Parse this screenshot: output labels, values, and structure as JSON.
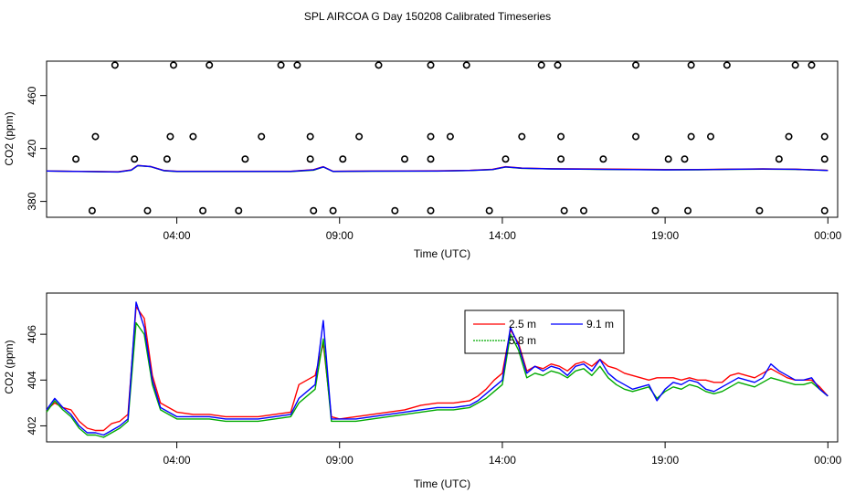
{
  "title": "SPL AIRCOA G  Day 150208  Calibrated Timeseries",
  "chart_data": [
    {
      "type": "scatter+line",
      "xlabel": "Time (UTC)",
      "ylabel": "CO2 (ppm)",
      "x_unit": "hours UTC",
      "xlim": [
        0.0,
        24.3
      ],
      "ylim": [
        368,
        486
      ],
      "xticks": [
        {
          "v": 4,
          "label": "04:00"
        },
        {
          "v": 9,
          "label": "09:00"
        },
        {
          "v": 14,
          "label": "14:00"
        },
        {
          "v": 19,
          "label": "19:00"
        },
        {
          "v": 24,
          "label": "00:00"
        }
      ],
      "yticks": [
        {
          "v": 380,
          "label": "380"
        },
        {
          "v": 420,
          "label": "420"
        },
        {
          "v": 460,
          "label": "460"
        }
      ],
      "point_series": {
        "name": "",
        "x": [
          1.4,
          3.1,
          4.8,
          5.9,
          8.2,
          8.8,
          10.7,
          11.8,
          13.6,
          15.9,
          16.5,
          18.7,
          19.7,
          21.9,
          23.9,
          0.9,
          2.7,
          3.7,
          6.1,
          8.1,
          9.1,
          11.0,
          11.8,
          14.1,
          15.8,
          17.1,
          19.1,
          19.6,
          22.5,
          23.9,
          1.5,
          3.8,
          4.5,
          6.6,
          8.1,
          9.6,
          11.8,
          12.4,
          14.6,
          15.8,
          18.1,
          19.8,
          20.4,
          22.8,
          23.9,
          2.1,
          3.9,
          5.0,
          7.2,
          7.7,
          10.2,
          11.8,
          12.9,
          15.2,
          15.7,
          18.1,
          19.8,
          20.9,
          23.0,
          23.5
        ],
        "y": [
          373,
          373,
          373,
          373,
          373,
          373,
          373,
          373,
          373,
          373,
          373,
          373,
          373,
          373,
          373,
          412,
          412,
          412,
          412,
          412,
          412,
          412,
          412,
          412,
          412,
          412,
          412,
          412,
          412,
          412,
          429,
          429,
          429,
          429,
          429,
          429,
          429,
          429,
          429,
          429,
          429,
          429,
          429,
          429,
          429,
          483,
          483,
          483,
          483,
          483,
          483,
          483,
          483,
          483,
          483,
          483,
          483,
          483,
          483,
          483
        ]
      },
      "series": [
        {
          "name": "",
          "color": "#008000",
          "x": [
            0,
            2.2,
            2.6,
            2.8,
            3.2,
            3.6,
            4.0,
            6.0,
            7.5,
            8.2,
            8.5,
            8.8,
            10.0,
            12.0,
            13.0,
            13.7,
            14.1,
            14.6,
            15.5,
            17.0,
            19.0,
            20.0,
            21.0,
            22.0,
            23.0,
            24.0
          ],
          "y": [
            403,
            402.2,
            403.6,
            407,
            406.2,
            403.2,
            402.6,
            402.6,
            402.6,
            403.6,
            406,
            402.6,
            402.8,
            402.9,
            403.3,
            404,
            406,
            405,
            404.5,
            404.2,
            403.8,
            403.9,
            404.2,
            404.4,
            404.2,
            403.4
          ]
        },
        {
          "name": "",
          "color": "#ff0000",
          "x": [
            0,
            2.2,
            2.6,
            2.8,
            3.2,
            3.6,
            4.0,
            6.0,
            7.5,
            8.2,
            8.5,
            8.8,
            10.0,
            12.0,
            13.0,
            13.7,
            14.1,
            14.6,
            15.5,
            17.0,
            19.0,
            20.0,
            21.0,
            22.0,
            23.0,
            24.0
          ],
          "y": [
            403,
            402.4,
            403.8,
            407.2,
            406.4,
            403.4,
            402.8,
            402.8,
            402.8,
            404,
            406.2,
            402.8,
            403,
            403.1,
            403.5,
            404.3,
            406.2,
            405.2,
            404.7,
            404.5,
            404.1,
            404.1,
            404.4,
            404.6,
            404.4,
            403.5
          ]
        },
        {
          "name": "",
          "color": "#0000ff",
          "x": [
            0,
            2.2,
            2.6,
            2.8,
            3.2,
            3.6,
            4.0,
            6.0,
            7.5,
            8.2,
            8.5,
            8.8,
            10.0,
            12.0,
            13.0,
            13.7,
            14.1,
            14.6,
            15.5,
            17.0,
            19.0,
            20.0,
            21.0,
            22.0,
            23.0,
            24.0
          ],
          "y": [
            403,
            402.3,
            403.7,
            407.1,
            406.3,
            403.3,
            402.7,
            402.7,
            402.7,
            403.8,
            406.1,
            402.7,
            402.9,
            403,
            403.4,
            404.1,
            406.1,
            405.1,
            404.6,
            404.3,
            403.9,
            404,
            404.3,
            404.5,
            404.3,
            403.4
          ]
        }
      ]
    },
    {
      "type": "line",
      "xlabel": "Time (UTC)",
      "ylabel": "CO2 (ppm)",
      "x_unit": "hours UTC",
      "xlim": [
        0.0,
        24.3
      ],
      "ylim": [
        401.3,
        407.8
      ],
      "xticks": [
        {
          "v": 4,
          "label": "04:00"
        },
        {
          "v": 9,
          "label": "09:00"
        },
        {
          "v": 14,
          "label": "14:00"
        },
        {
          "v": 19,
          "label": "19:00"
        },
        {
          "v": 24,
          "label": "00:00"
        }
      ],
      "yticks": [
        {
          "v": 402,
          "label": "402"
        },
        {
          "v": 404,
          "label": "404"
        },
        {
          "v": 406,
          "label": "406"
        }
      ],
      "legend": "top-center",
      "series": [
        {
          "name": "2.5 m",
          "color": "#ff0000",
          "x": [
            0.0,
            0.25,
            0.5,
            0.75,
            1.0,
            1.25,
            1.5,
            1.75,
            2.0,
            2.25,
            2.5,
            2.75,
            3.0,
            3.25,
            3.5,
            3.75,
            4.0,
            4.5,
            5.0,
            5.5,
            6.0,
            6.5,
            7.0,
            7.5,
            7.75,
            8.0,
            8.25,
            8.5,
            8.75,
            9.0,
            9.5,
            10.0,
            10.5,
            11.0,
            11.5,
            12.0,
            12.5,
            13.0,
            13.25,
            13.5,
            13.75,
            14.0,
            14.25,
            14.5,
            14.75,
            15.0,
            15.25,
            15.5,
            15.75,
            16.0,
            16.25,
            16.5,
            16.75,
            17.0,
            17.25,
            17.5,
            17.75,
            18.0,
            18.25,
            18.5,
            18.75,
            19.0,
            19.25,
            19.5,
            19.75,
            20.0,
            20.25,
            20.5,
            20.75,
            21.0,
            21.25,
            21.5,
            21.75,
            22.0,
            22.25,
            22.5,
            22.75,
            23.0,
            23.25,
            23.5,
            23.75,
            24.0
          ],
          "y": [
            402.7,
            403.0,
            402.8,
            402.7,
            402.2,
            401.9,
            401.8,
            401.8,
            402.1,
            402.2,
            402.5,
            407.2,
            406.7,
            404.2,
            403.0,
            402.8,
            402.6,
            402.5,
            402.5,
            402.4,
            402.4,
            402.4,
            402.5,
            402.6,
            403.8,
            404.0,
            404.2,
            405.6,
            402.4,
            402.3,
            402.4,
            402.5,
            402.6,
            402.7,
            402.9,
            403.0,
            403.0,
            403.1,
            403.3,
            403.6,
            404.0,
            404.3,
            406.2,
            405.6,
            404.4,
            404.6,
            404.5,
            404.7,
            404.6,
            404.4,
            404.7,
            404.8,
            404.6,
            404.9,
            404.6,
            404.5,
            404.3,
            404.2,
            404.1,
            404.0,
            404.1,
            404.1,
            404.1,
            404.0,
            404.1,
            404.0,
            404.0,
            403.9,
            403.9,
            404.2,
            404.3,
            404.2,
            404.1,
            404.3,
            404.5,
            404.3,
            404.1,
            404.0,
            404.0,
            404.0,
            403.7,
            403.3
          ]
        },
        {
          "name": "5.8 m",
          "color": "#00aa00",
          "x": [
            0.0,
            0.25,
            0.5,
            0.75,
            1.0,
            1.25,
            1.5,
            1.75,
            2.0,
            2.25,
            2.5,
            2.75,
            3.0,
            3.25,
            3.5,
            3.75,
            4.0,
            4.5,
            5.0,
            5.5,
            6.0,
            6.5,
            7.0,
            7.5,
            7.75,
            8.0,
            8.25,
            8.5,
            8.75,
            9.0,
            9.5,
            10.0,
            10.5,
            11.0,
            11.5,
            12.0,
            12.5,
            13.0,
            13.25,
            13.5,
            13.75,
            14.0,
            14.25,
            14.5,
            14.75,
            15.0,
            15.25,
            15.5,
            15.75,
            16.0,
            16.25,
            16.5,
            16.75,
            17.0,
            17.25,
            17.5,
            17.75,
            18.0,
            18.25,
            18.5,
            18.75,
            19.0,
            19.25,
            19.5,
            19.75,
            20.0,
            20.25,
            20.5,
            20.75,
            21.0,
            21.25,
            21.5,
            21.75,
            22.0,
            22.25,
            22.5,
            22.75,
            23.0,
            23.25,
            23.5,
            23.75,
            24.0
          ],
          "y": [
            402.6,
            403.1,
            402.7,
            402.4,
            401.9,
            401.6,
            401.6,
            401.5,
            401.7,
            401.9,
            402.2,
            406.5,
            406.0,
            403.8,
            402.7,
            402.5,
            402.3,
            402.3,
            402.3,
            402.2,
            402.2,
            402.2,
            402.3,
            402.4,
            403.0,
            403.3,
            403.6,
            405.8,
            402.2,
            402.2,
            402.2,
            402.3,
            402.4,
            402.5,
            402.6,
            402.7,
            402.7,
            402.8,
            403.0,
            403.2,
            403.5,
            403.8,
            406.0,
            405.3,
            404.1,
            404.3,
            404.2,
            404.4,
            404.3,
            404.1,
            404.4,
            404.5,
            404.2,
            404.6,
            404.1,
            403.8,
            403.6,
            403.5,
            403.6,
            403.7,
            403.2,
            403.5,
            403.7,
            403.6,
            403.8,
            403.7,
            403.5,
            403.4,
            403.5,
            403.7,
            403.9,
            403.8,
            403.7,
            403.9,
            404.1,
            404.0,
            403.9,
            403.8,
            403.8,
            403.9,
            403.6,
            403.3
          ]
        },
        {
          "name": "9.1 m",
          "color": "#0000ff",
          "x": [
            0.0,
            0.25,
            0.5,
            0.75,
            1.0,
            1.25,
            1.5,
            1.75,
            2.0,
            2.25,
            2.5,
            2.75,
            3.0,
            3.25,
            3.5,
            3.75,
            4.0,
            4.5,
            5.0,
            5.5,
            6.0,
            6.5,
            7.0,
            7.5,
            7.75,
            8.0,
            8.25,
            8.5,
            8.75,
            9.0,
            9.5,
            10.0,
            10.5,
            11.0,
            11.5,
            12.0,
            12.5,
            13.0,
            13.25,
            13.5,
            13.75,
            14.0,
            14.25,
            14.5,
            14.75,
            15.0,
            15.25,
            15.5,
            15.75,
            16.0,
            16.25,
            16.5,
            16.75,
            17.0,
            17.25,
            17.5,
            17.75,
            18.0,
            18.25,
            18.5,
            18.75,
            19.0,
            19.25,
            19.5,
            19.75,
            20.0,
            20.25,
            20.5,
            20.75,
            21.0,
            21.25,
            21.5,
            21.75,
            22.0,
            22.25,
            22.5,
            22.75,
            23.0,
            23.25,
            23.5,
            23.75,
            24.0
          ],
          "y": [
            402.7,
            403.2,
            402.8,
            402.5,
            402.0,
            401.7,
            401.7,
            401.6,
            401.8,
            402.0,
            402.3,
            407.4,
            406.3,
            404.0,
            402.8,
            402.6,
            402.4,
            402.4,
            402.4,
            402.3,
            402.3,
            402.3,
            402.4,
            402.5,
            403.2,
            403.5,
            403.8,
            406.6,
            402.3,
            402.3,
            402.3,
            402.4,
            402.5,
            402.6,
            402.7,
            402.8,
            402.8,
            402.9,
            403.1,
            403.4,
            403.7,
            404.0,
            406.3,
            405.5,
            404.3,
            404.6,
            404.4,
            404.6,
            404.5,
            404.2,
            404.6,
            404.7,
            404.4,
            404.9,
            404.3,
            404.0,
            403.8,
            403.6,
            403.7,
            403.8,
            403.1,
            403.6,
            403.9,
            403.8,
            404.0,
            403.9,
            403.6,
            403.5,
            403.7,
            403.9,
            404.1,
            404.0,
            403.9,
            404.1,
            404.7,
            404.4,
            404.2,
            404.0,
            404.0,
            404.1,
            403.6,
            403.3
          ]
        }
      ]
    }
  ]
}
